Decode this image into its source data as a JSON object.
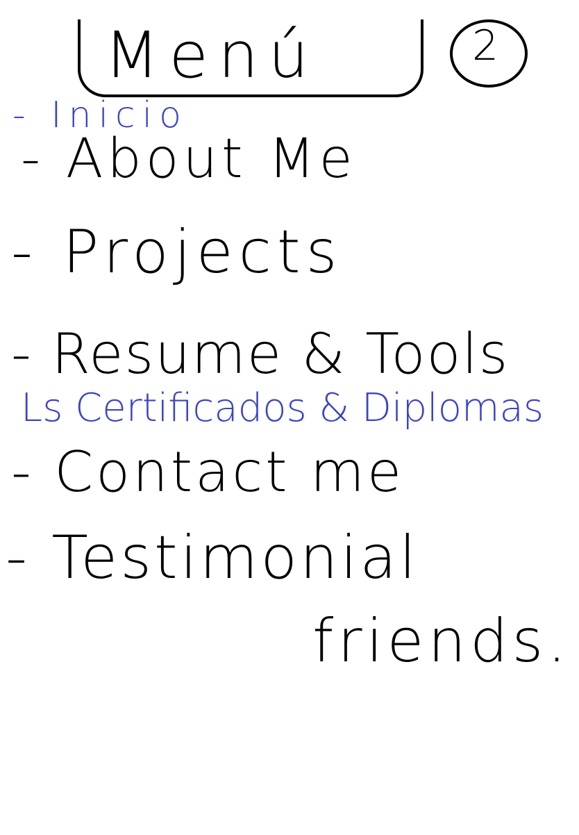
{
  "header": {
    "title": "Menú",
    "badge_number": "2"
  },
  "menu": {
    "items": [
      {
        "label": "- Inicio",
        "ink": "blue"
      },
      {
        "label": "- About Me",
        "ink": "black"
      },
      {
        "label": "- Projects",
        "ink": "black"
      },
      {
        "label": "- Resume & Tools",
        "ink": "black"
      },
      {
        "label": "Ls Certificados & Diplomas",
        "ink": "blue"
      },
      {
        "label": "- Contact me",
        "ink": "black"
      },
      {
        "label": "- Testimonial",
        "ink": "black"
      },
      {
        "label": "friends.",
        "ink": "black"
      }
    ]
  },
  "colors": {
    "ink_black": "#000000",
    "ink_blue": "#3a44c6",
    "paper": "#ffffff"
  }
}
